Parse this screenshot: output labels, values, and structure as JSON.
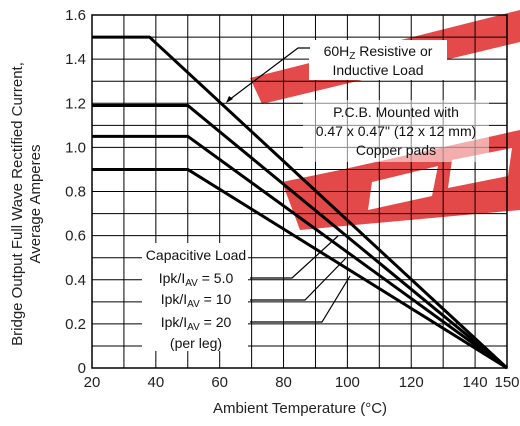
{
  "chart_data": {
    "type": "line",
    "title": "",
    "xlabel": "Ambient Temperature (°C)",
    "ylabel_lines": [
      "Bridge Output Full Wave Rectified Current,",
      "Average Amperes"
    ],
    "xlim": [
      20,
      150
    ],
    "ylim": [
      0,
      1.6
    ],
    "x_ticks": [
      20,
      40,
      60,
      80,
      100,
      120,
      140,
      150
    ],
    "y_ticks": [
      0,
      0.2,
      0.4,
      0.6,
      0.8,
      1.0,
      1.2,
      1.4,
      1.6
    ],
    "grid": true,
    "series": [
      {
        "x": [
          20,
          38,
          150
        ],
        "y": [
          1.5,
          1.5,
          0
        ]
      },
      {
        "x": [
          20,
          50,
          150
        ],
        "y": [
          1.19,
          1.19,
          0
        ]
      },
      {
        "x": [
          20,
          50,
          150
        ],
        "y": [
          1.05,
          1.05,
          0
        ]
      },
      {
        "x": [
          20,
          50,
          150
        ],
        "y": [
          0.9,
          0.9,
          0
        ]
      }
    ],
    "annotations": {
      "resistive": {
        "line1": "60H",
        "line1_sub": "Z",
        "line1_rest": " Resistive or",
        "line2": "Inductive Load"
      },
      "pcb": {
        "line1": "P.C.B. Mounted with",
        "line2": "0.47 x 0.47\" (12 x 12 mm)",
        "line3": "Copper pads"
      },
      "capacitive": {
        "title": "Capacitive Load",
        "ratio_prefix": "Ipk/I",
        "ratio_sub": "AV",
        "ratio1": " = 5.0",
        "ratio2": " = 10",
        "ratio3": " = 20",
        "per_leg": "(per leg)"
      }
    },
    "watermark_color": "#e02a2a"
  }
}
